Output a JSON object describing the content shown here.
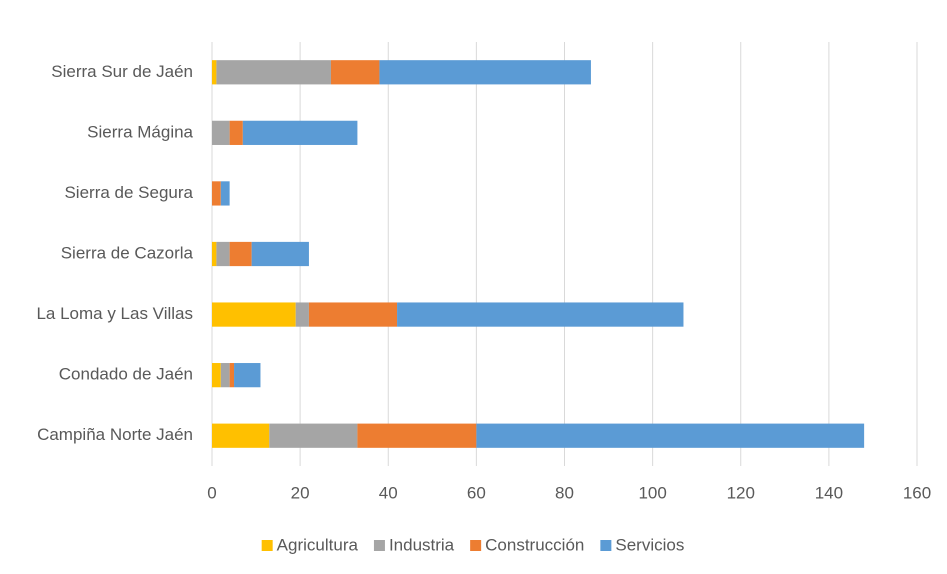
{
  "chart_data": {
    "type": "stacked-barh",
    "categories": [
      "Sierra Sur de Jaén",
      "Sierra Mágina",
      "Sierra de Segura",
      "Sierra de Cazorla",
      "La Loma y Las Villas",
      "Condado de Jaén",
      "Campiña Norte Jaén"
    ],
    "series": [
      {
        "name": "Agricultura",
        "color": "#ffc000",
        "values": [
          1,
          0,
          0,
          1,
          19,
          2,
          13
        ]
      },
      {
        "name": "Industria",
        "color": "#a5a5a5",
        "values": [
          26,
          4,
          0,
          3,
          3,
          2,
          20
        ]
      },
      {
        "name": "Construcción",
        "color": "#ed7d31",
        "values": [
          11,
          3,
          2,
          5,
          20,
          1,
          27
        ]
      },
      {
        "name": "Servicios",
        "color": "#5b9bd5",
        "values": [
          48,
          26,
          2,
          13,
          65,
          6,
          88
        ]
      }
    ],
    "xlim": [
      0,
      160
    ],
    "xticks": [
      0,
      20,
      40,
      60,
      80,
      100,
      120,
      140,
      160
    ],
    "grid": true,
    "legend": "bottom"
  }
}
